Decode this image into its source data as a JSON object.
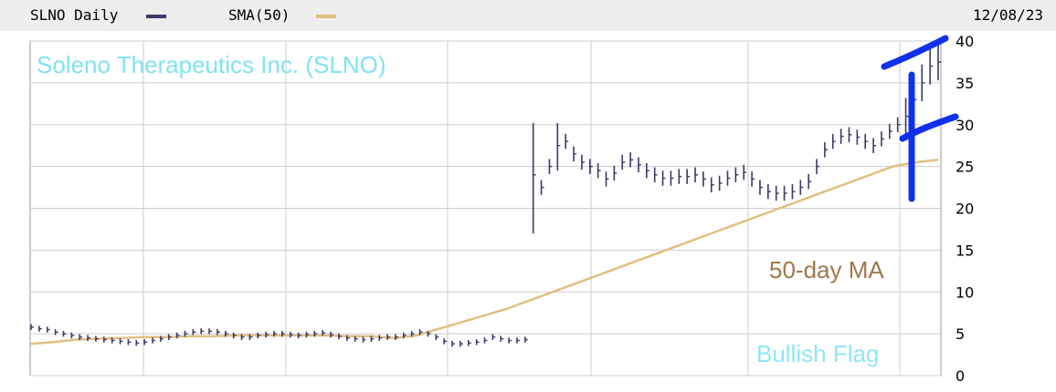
{
  "header": {
    "series_label": "SLNO Daily",
    "sma_label": "SMA(50)",
    "date": "12/08/23",
    "price_color": "#3a3a6e",
    "sma_color": "#e2bf7f"
  },
  "annotations": {
    "title": "Soleno Therapeutics Inc. (SLNO)",
    "ma_label": "50-day MA",
    "pattern_label": "Bullish Flag",
    "title_color": "#7fe3f5",
    "ma_color": "#a0784a",
    "pattern_color": "#8fe6f5",
    "flag_color": "#1030ee"
  },
  "chart_data": {
    "type": "line",
    "title": "Soleno Therapeutics Inc. (SLNO)",
    "xlabel": "",
    "ylabel": "",
    "ylim": [
      0,
      40
    ],
    "yticks": [
      0,
      5,
      10,
      15,
      20,
      25,
      30,
      35,
      40
    ],
    "grid": true,
    "series": [
      {
        "name": "SLNO Daily",
        "style": "ohlc-bars",
        "values": [
          5.8,
          5.6,
          5.5,
          5.2,
          5.0,
          4.8,
          4.6,
          4.5,
          4.4,
          4.3,
          4.2,
          4.1,
          4.0,
          3.9,
          4.0,
          4.2,
          4.4,
          4.6,
          4.8,
          5.0,
          5.2,
          5.3,
          5.3,
          5.2,
          5.0,
          4.8,
          4.6,
          4.6,
          4.8,
          4.9,
          5.0,
          5.0,
          4.9,
          4.8,
          4.9,
          5.0,
          5.1,
          4.9,
          4.7,
          4.5,
          4.4,
          4.3,
          4.4,
          4.5,
          4.6,
          4.6,
          4.8,
          5.0,
          5.2,
          5.0,
          4.6,
          4.1,
          3.8,
          3.8,
          3.9,
          4.0,
          4.2,
          4.6,
          4.4,
          4.2,
          4.2,
          4.3,
          24.0,
          22.5,
          25.0,
          27.5,
          28.0,
          26.5,
          25.5,
          25.0,
          24.5,
          23.5,
          24.2,
          25.5,
          25.8,
          25.2,
          24.5,
          24.0,
          23.6,
          23.6,
          23.8,
          23.8,
          24.0,
          23.5,
          22.8,
          23.0,
          23.6,
          24.0,
          24.3,
          23.5,
          22.5,
          22.0,
          21.8,
          21.8,
          22.0,
          22.5,
          23.2,
          25.0,
          27.0,
          28.0,
          28.6,
          28.8,
          28.5,
          28.0,
          27.5,
          28.3,
          29.2,
          30.0,
          31.0,
          33.0,
          35.0,
          37.0,
          37.5
        ],
        "highs": {
          "62": 30.2,
          "65": 30.2
        }
      },
      {
        "name": "SMA(50)",
        "style": "line",
        "values": [
          3.8,
          4.0,
          4.3,
          4.4,
          4.5,
          4.6,
          4.6,
          4.7,
          4.7,
          4.8,
          4.8,
          4.8,
          4.8,
          4.8,
          4.7,
          4.7,
          4.5,
          4.8,
          5.6,
          6.4,
          7.2,
          8.0,
          9.0,
          10.0,
          11.0,
          12.0,
          13.0,
          14.0,
          15.0,
          16.0,
          17.0,
          18.0,
          19.0,
          20.0,
          21.0,
          22.0,
          23.0,
          24.0,
          25.0,
          25.5,
          25.8
        ]
      }
    ]
  }
}
